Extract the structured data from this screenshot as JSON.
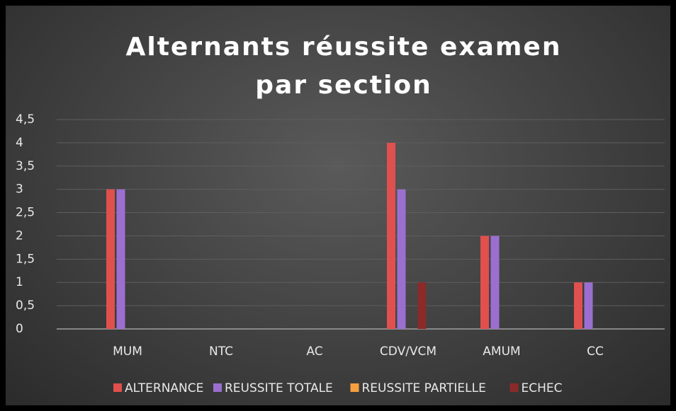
{
  "chart_data": {
    "type": "bar",
    "title": "Alternants réussite examen par section",
    "categories": [
      "MUM",
      "NTC",
      "AC",
      "CDV/VCM",
      "AMUM",
      "CC"
    ],
    "series": [
      {
        "name": "ALTERNANCE",
        "color": "#e0504e",
        "values": [
          3,
          0,
          0,
          4,
          2,
          1
        ]
      },
      {
        "name": "REUSSITE TOTALE",
        "color": "#9b6fd0",
        "values": [
          3,
          0,
          0,
          3,
          2,
          1
        ]
      },
      {
        "name": "REUSSITE PARTIELLE",
        "color": "#f5a040",
        "values": [
          0,
          0,
          0,
          0,
          0,
          0
        ]
      },
      {
        "name": "ECHEC",
        "color": "#8b2a2a",
        "values": [
          0,
          0,
          0,
          1,
          0,
          0
        ]
      }
    ],
    "ylim": [
      0,
      4.5
    ],
    "yticks": [
      0,
      {
        "value": 0.5,
        "label": "0,5"
      },
      1,
      {
        "value": 1.5,
        "label": "1,5"
      },
      2,
      {
        "value": 2.5,
        "label": "2,5"
      },
      3,
      {
        "value": 3.5,
        "label": "3,5"
      },
      4,
      {
        "value": 4.5,
        "label": "4,5"
      }
    ],
    "grid": true,
    "legend": "bottom"
  }
}
